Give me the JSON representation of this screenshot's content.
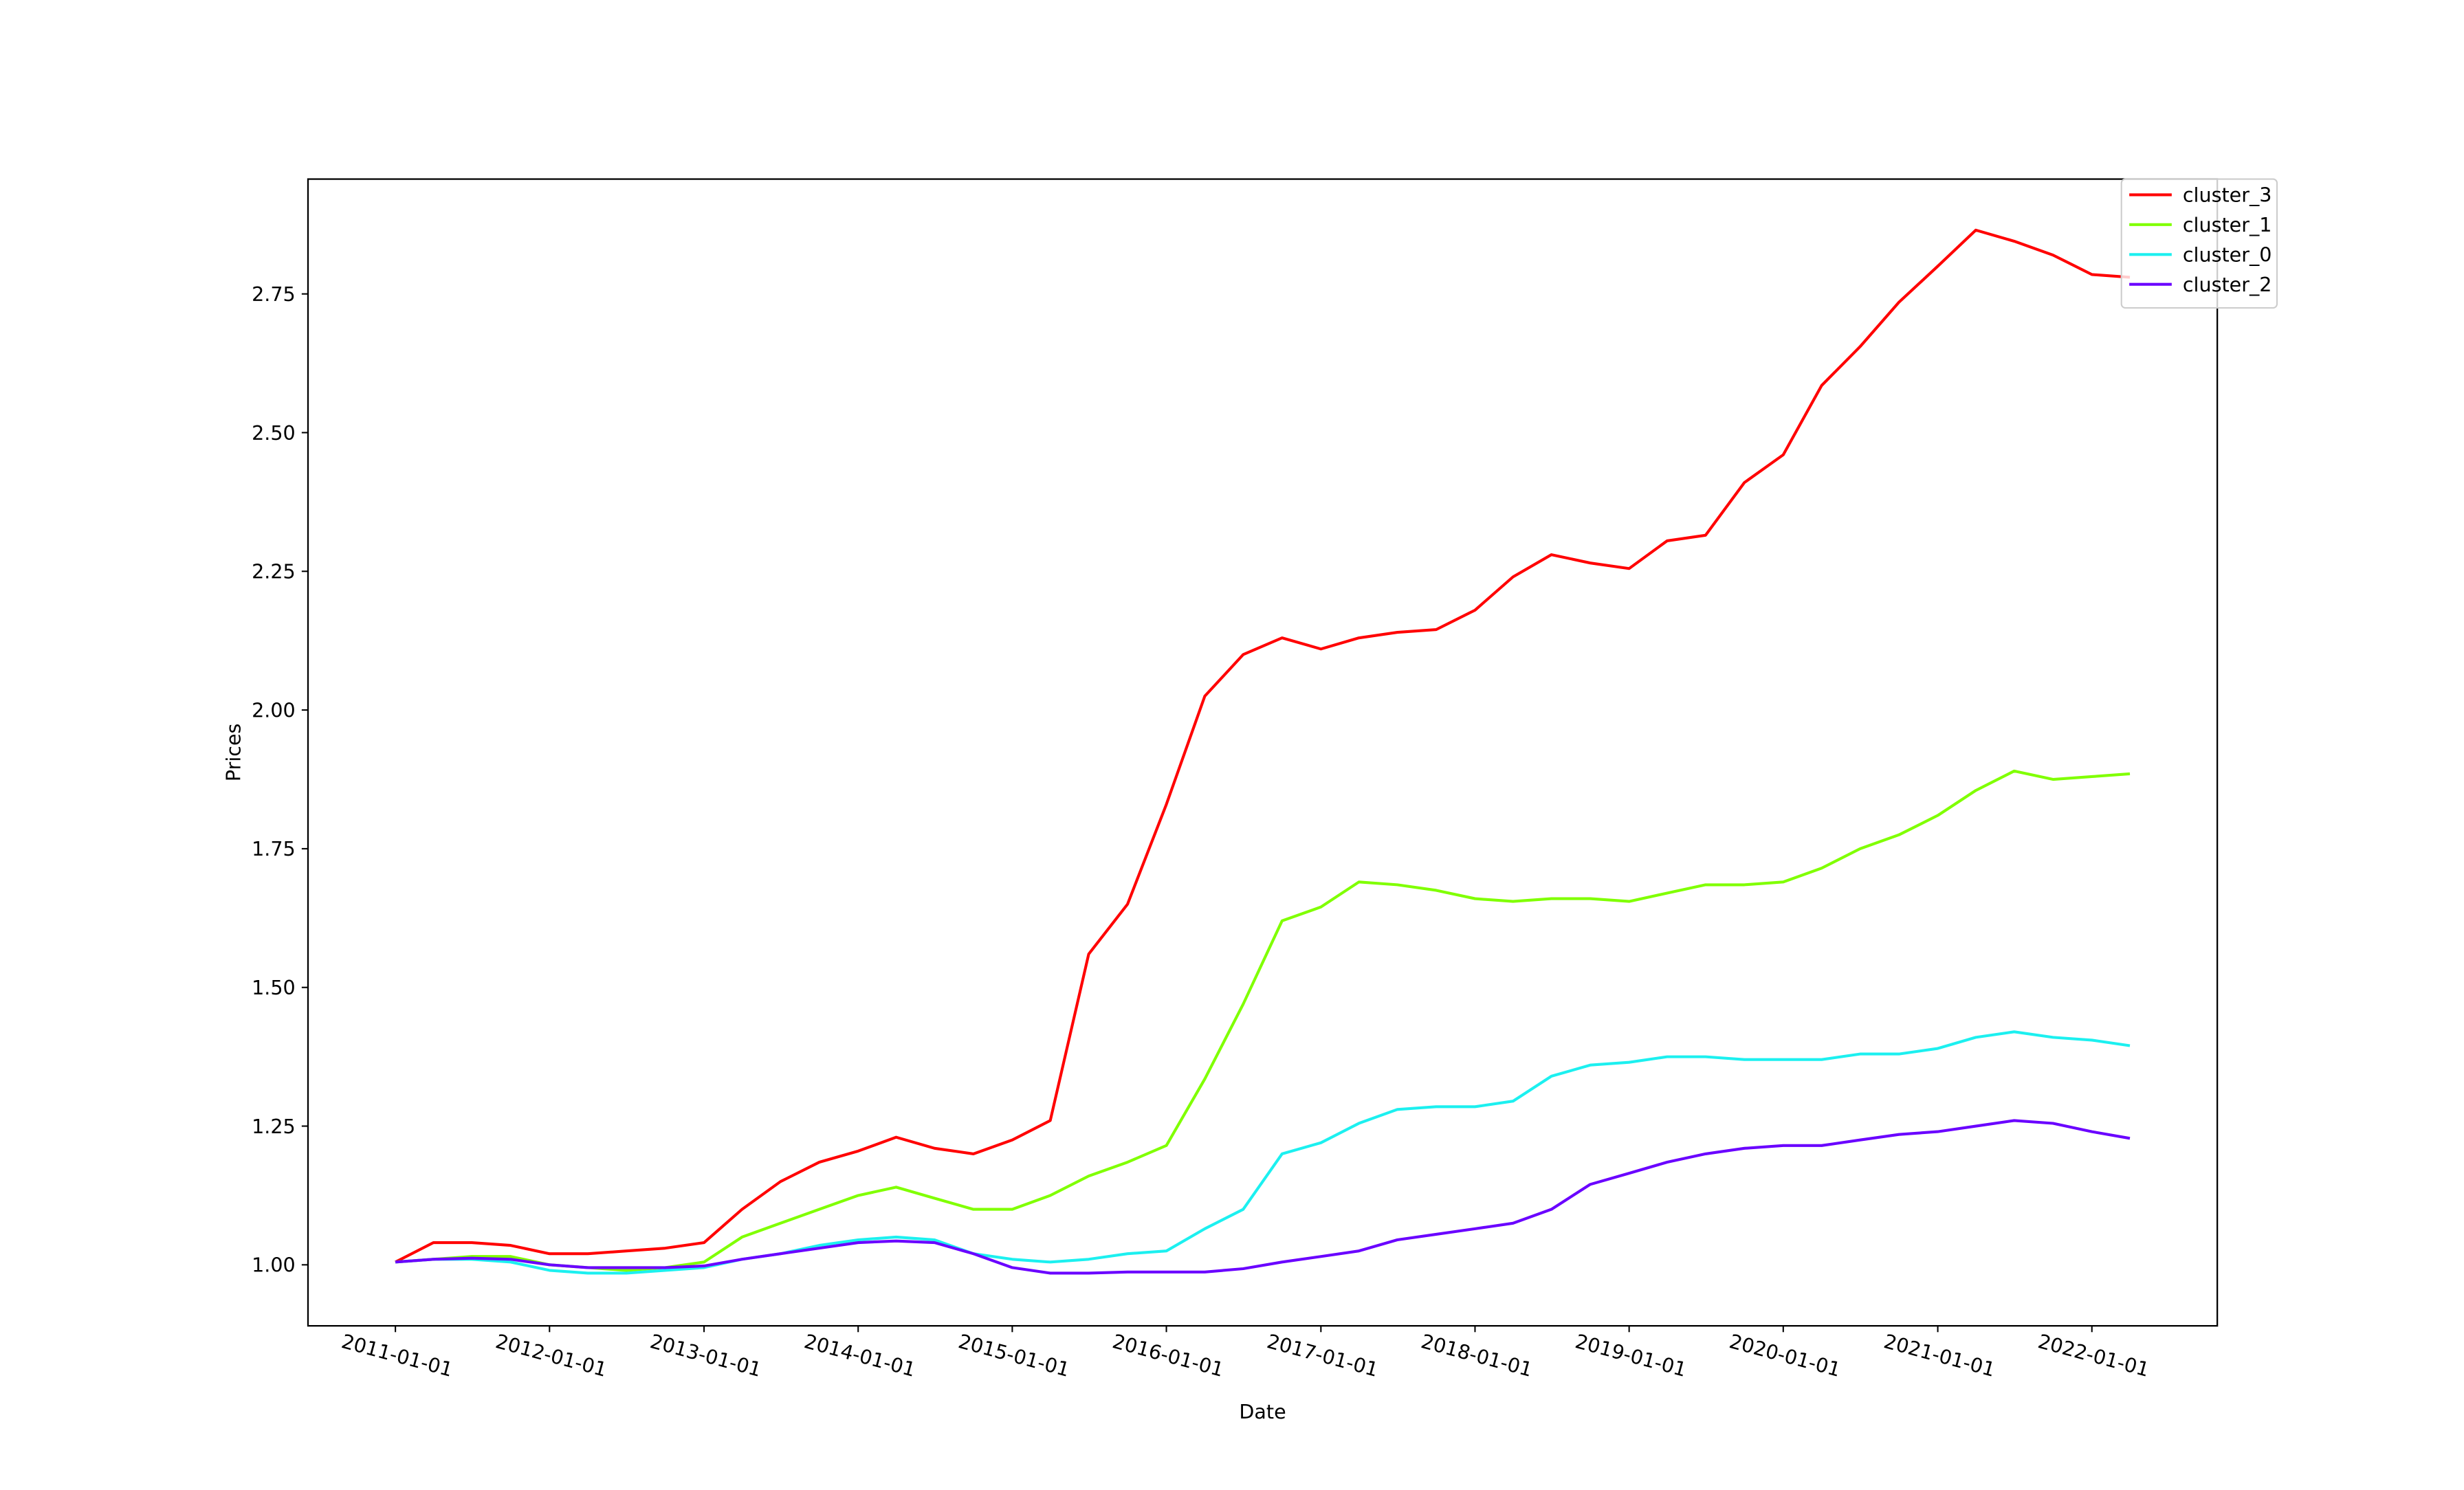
{
  "chart_data": {
    "type": "line",
    "xlabel": "Date",
    "ylabel": "Prices",
    "x": [
      "2011-01-01",
      "2011-04-01",
      "2011-07-01",
      "2011-10-01",
      "2012-01-01",
      "2012-04-01",
      "2012-07-01",
      "2012-10-01",
      "2013-01-01",
      "2013-04-01",
      "2013-07-01",
      "2013-10-01",
      "2014-01-01",
      "2014-04-01",
      "2014-07-01",
      "2014-10-01",
      "2015-01-01",
      "2015-04-01",
      "2015-07-01",
      "2015-10-01",
      "2016-01-01",
      "2016-04-01",
      "2016-07-01",
      "2016-10-01",
      "2017-01-01",
      "2017-04-01",
      "2017-07-01",
      "2017-10-01",
      "2018-01-01",
      "2018-04-01",
      "2018-07-01",
      "2018-10-01",
      "2019-01-01",
      "2019-04-01",
      "2019-07-01",
      "2019-10-01",
      "2020-01-01",
      "2020-04-01",
      "2020-07-01",
      "2020-10-01",
      "2021-01-01",
      "2021-04-01",
      "2021-07-01",
      "2021-10-01",
      "2022-01-01",
      "2022-04-01"
    ],
    "series": [
      {
        "name": "cluster_3",
        "color": "#ff0000",
        "values": [
          1.005,
          1.04,
          1.04,
          1.035,
          1.02,
          1.02,
          1.025,
          1.03,
          1.04,
          1.1,
          1.15,
          1.185,
          1.205,
          1.23,
          1.21,
          1.2,
          1.225,
          1.26,
          1.56,
          1.65,
          1.83,
          2.025,
          2.1,
          2.13,
          2.11,
          2.13,
          2.14,
          2.145,
          2.18,
          2.24,
          2.28,
          2.265,
          2.255,
          2.305,
          2.315,
          2.41,
          2.46,
          2.585,
          2.655,
          2.735,
          2.8,
          2.865,
          2.845,
          2.82,
          2.785,
          2.78
        ]
      },
      {
        "name": "cluster_1",
        "color": "#80ff00",
        "values": [
          1.005,
          1.01,
          1.015,
          1.015,
          1.0,
          0.995,
          0.99,
          0.995,
          1.005,
          1.05,
          1.075,
          1.1,
          1.125,
          1.14,
          1.12,
          1.1,
          1.1,
          1.125,
          1.16,
          1.185,
          1.215,
          1.335,
          1.47,
          1.62,
          1.645,
          1.69,
          1.685,
          1.675,
          1.66,
          1.655,
          1.66,
          1.66,
          1.655,
          1.67,
          1.685,
          1.685,
          1.69,
          1.715,
          1.75,
          1.775,
          1.81,
          1.855,
          1.89,
          1.875,
          1.88,
          1.885
        ]
      },
      {
        "name": "cluster_0",
        "color": "#1cf0f0",
        "values": [
          1.005,
          1.01,
          1.01,
          1.005,
          0.99,
          0.985,
          0.985,
          0.99,
          0.995,
          1.01,
          1.02,
          1.035,
          1.045,
          1.05,
          1.045,
          1.02,
          1.01,
          1.005,
          1.01,
          1.02,
          1.025,
          1.065,
          1.1,
          1.2,
          1.22,
          1.255,
          1.28,
          1.285,
          1.285,
          1.295,
          1.34,
          1.36,
          1.365,
          1.375,
          1.375,
          1.37,
          1.37,
          1.37,
          1.38,
          1.38,
          1.39,
          1.41,
          1.42,
          1.41,
          1.405,
          1.395
        ]
      },
      {
        "name": "cluster_2",
        "color": "#6a00ff",
        "values": [
          1.005,
          1.01,
          1.012,
          1.01,
          1.0,
          0.995,
          0.995,
          0.995,
          0.998,
          1.01,
          1.02,
          1.03,
          1.04,
          1.043,
          1.04,
          1.02,
          0.995,
          0.985,
          0.985,
          0.987,
          0.987,
          0.987,
          0.993,
          1.005,
          1.015,
          1.025,
          1.045,
          1.055,
          1.065,
          1.075,
          1.1,
          1.145,
          1.165,
          1.185,
          1.2,
          1.21,
          1.215,
          1.215,
          1.225,
          1.235,
          1.24,
          1.25,
          1.26,
          1.255,
          1.24,
          1.228
        ]
      }
    ],
    "xlim": [
      "2010-06-08",
      "2022-10-25"
    ],
    "xticks": [
      "2011-01-01",
      "2012-01-01",
      "2013-01-01",
      "2014-01-01",
      "2015-01-01",
      "2016-01-01",
      "2017-01-01",
      "2018-01-01",
      "2019-01-01",
      "2020-01-01",
      "2021-01-01",
      "2022-01-01"
    ],
    "ylim": [
      0.89,
      2.957
    ],
    "yticks": [
      {
        "value": 1.0,
        "label": "1.00"
      },
      {
        "value": 1.25,
        "label": "1.25"
      },
      {
        "value": 1.5,
        "label": "1.50"
      },
      {
        "value": 1.75,
        "label": "1.75"
      },
      {
        "value": 2.0,
        "label": "2.00"
      },
      {
        "value": 2.25,
        "label": "2.25"
      },
      {
        "value": 2.5,
        "label": "2.50"
      },
      {
        "value": 2.75,
        "label": "2.75"
      }
    ],
    "grid": false,
    "legend": "upper right"
  }
}
